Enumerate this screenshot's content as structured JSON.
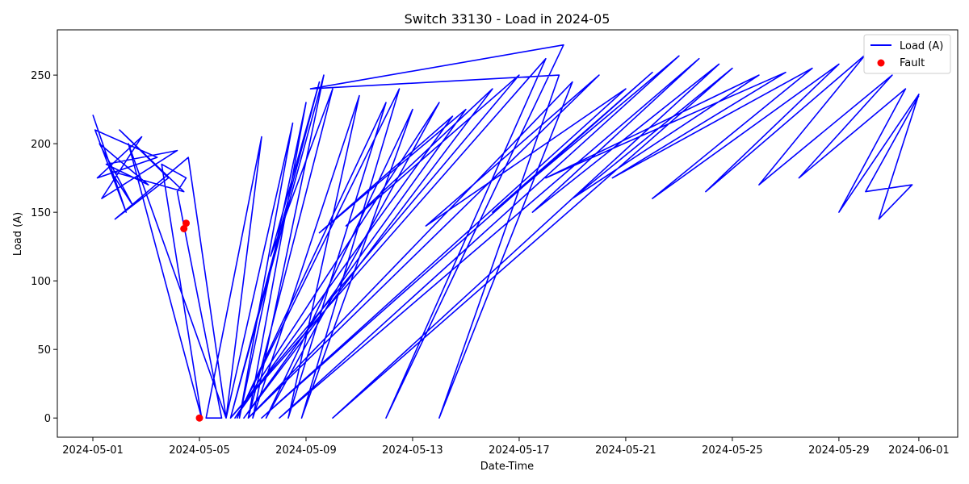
{
  "chart_data": {
    "type": "line",
    "title": "Switch 33130 - Load in 2024-05",
    "xlabel": "Date-Time",
    "ylabel": "Load (A)",
    "x_range": [
      "2024-04-29T16:00",
      "2024-06-02T11:00"
    ],
    "ylim": [
      -14,
      283
    ],
    "x_ticks": [
      "2024-05-01",
      "2024-05-05",
      "2024-05-09",
      "2024-05-13",
      "2024-05-17",
      "2024-05-21",
      "2024-05-25",
      "2024-05-29",
      "2024-06-01"
    ],
    "y_ticks": [
      0,
      50,
      100,
      150,
      200,
      250
    ],
    "grid": false,
    "legend_position": "top-right",
    "colors": {
      "line": "#0000ff",
      "fault": "#ff0000"
    },
    "series": [
      {
        "name": "Load (A)",
        "style": "line",
        "x": [
          "2024-05-01T00:00",
          "2024-05-02T06:00",
          "2024-05-01T02:00",
          "2024-05-03T10:00",
          "2024-05-01T04:00",
          "2024-05-02T20:00",
          "2024-05-01T08:00",
          "2024-05-04T04:00",
          "2024-05-01T12:00",
          "2024-05-03T02:00",
          "2024-05-01T06:00",
          "2024-05-02T12:00",
          "2024-05-01T16:00",
          "2024-05-04T10:00",
          "2024-05-02T00:00",
          "2024-05-03T20:00",
          "2024-05-01T20:00",
          "2024-05-04T14:00",
          "2024-05-04T23:00",
          "2024-05-06T00:00",
          "2024-05-02T08:00",
          "2024-05-05T02:00",
          "2024-05-03T14:00",
          "2024-05-04T12:00",
          "2024-05-04T04:00",
          "2024-05-05T20:00",
          "2024-05-05T06:00",
          "2024-05-07T08:00",
          "2024-05-06T00:00",
          "2024-05-08T12:00",
          "2024-05-06T12:00",
          "2024-05-09T00:00",
          "2024-05-06T20:00",
          "2024-05-10T00:00",
          "2024-05-07T16:00",
          "2024-05-09T12:00",
          "2024-05-06T04:00",
          "2024-05-09T16:00",
          "2024-05-07T00:00",
          "2024-05-11T00:00",
          "2024-05-08T08:00",
          "2024-05-12T00:00",
          "2024-05-06T10:00",
          "2024-05-12T12:00",
          "2024-05-08T20:00",
          "2024-05-13T00:00",
          "2024-05-07T12:00",
          "2024-05-14T00:00",
          "2024-05-06T08:00",
          "2024-05-14T12:00",
          "2024-05-09T12:00",
          "2024-05-15T00:00",
          "2024-05-06T16:00",
          "2024-05-16T00:00",
          "2024-05-10T12:00",
          "2024-05-17T00:00",
          "2024-05-06T04:00",
          "2024-05-18T00:00",
          "2024-05-12T00:00",
          "2024-05-18T16:00",
          "2024-05-09T04:00",
          "2024-05-18T12:00",
          "2024-05-14T00:00",
          "2024-05-19T00:00",
          "2024-05-06T20:00",
          "2024-05-20T00:00",
          "2024-05-13T12:00",
          "2024-05-21T00:00",
          "2024-05-07T08:00",
          "2024-05-22T00:00",
          "2024-05-16T00:00",
          "2024-05-23T00:00",
          "2024-05-08T00:00",
          "2024-05-23T18:00",
          "2024-05-17T12:00",
          "2024-05-24T12:00",
          "2024-05-10T00:00",
          "2024-05-25T00:00",
          "2024-05-19T00:00",
          "2024-05-26T00:00",
          "2024-05-18T00:00",
          "2024-05-27T00:00",
          "2024-05-20T12:00",
          "2024-05-28T00:00",
          "2024-05-22T00:00",
          "2024-05-29T00:00",
          "2024-05-24T00:00",
          "2024-05-30T00:00",
          "2024-05-26T00:00",
          "2024-05-31T00:00",
          "2024-05-27T12:00",
          "2024-05-31T12:00",
          "2024-05-29T00:00",
          "2024-06-01T00:00",
          "2024-05-30T12:00",
          "2024-05-31T18:00",
          "2024-05-30T00:00",
          "2024-06-01T00:00"
        ],
        "y": [
          221,
          150,
          210,
          190,
          175,
          205,
          160,
          195,
          185,
          170,
          200,
          155,
          180,
          165,
          210,
          175,
          145,
          190,
          140,
          0,
          200,
          0,
          185,
          175,
          165,
          0,
          0,
          205,
          0,
          215,
          0,
          230,
          0,
          240,
          118,
          245,
          0,
          250,
          0,
          235,
          0,
          230,
          0,
          240,
          0,
          225,
          0,
          230,
          0,
          220,
          135,
          225,
          0,
          240,
          140,
          250,
          0,
          262,
          0,
          272,
          240,
          250,
          0,
          245,
          0,
          250,
          140,
          240,
          0,
          252,
          150,
          264,
          0,
          262,
          150,
          258,
          0,
          255,
          160,
          250,
          175,
          252,
          175,
          255,
          160,
          258,
          165,
          265,
          170,
          250,
          175,
          240,
          150,
          236,
          145,
          170,
          165,
          235
        ]
      },
      {
        "name": "Fault",
        "style": "scatter",
        "x": [
          "2024-05-04T10:00",
          "2024-05-04T12:00",
          "2024-05-05T00:00"
        ],
        "y": [
          138,
          142,
          0
        ]
      }
    ]
  }
}
